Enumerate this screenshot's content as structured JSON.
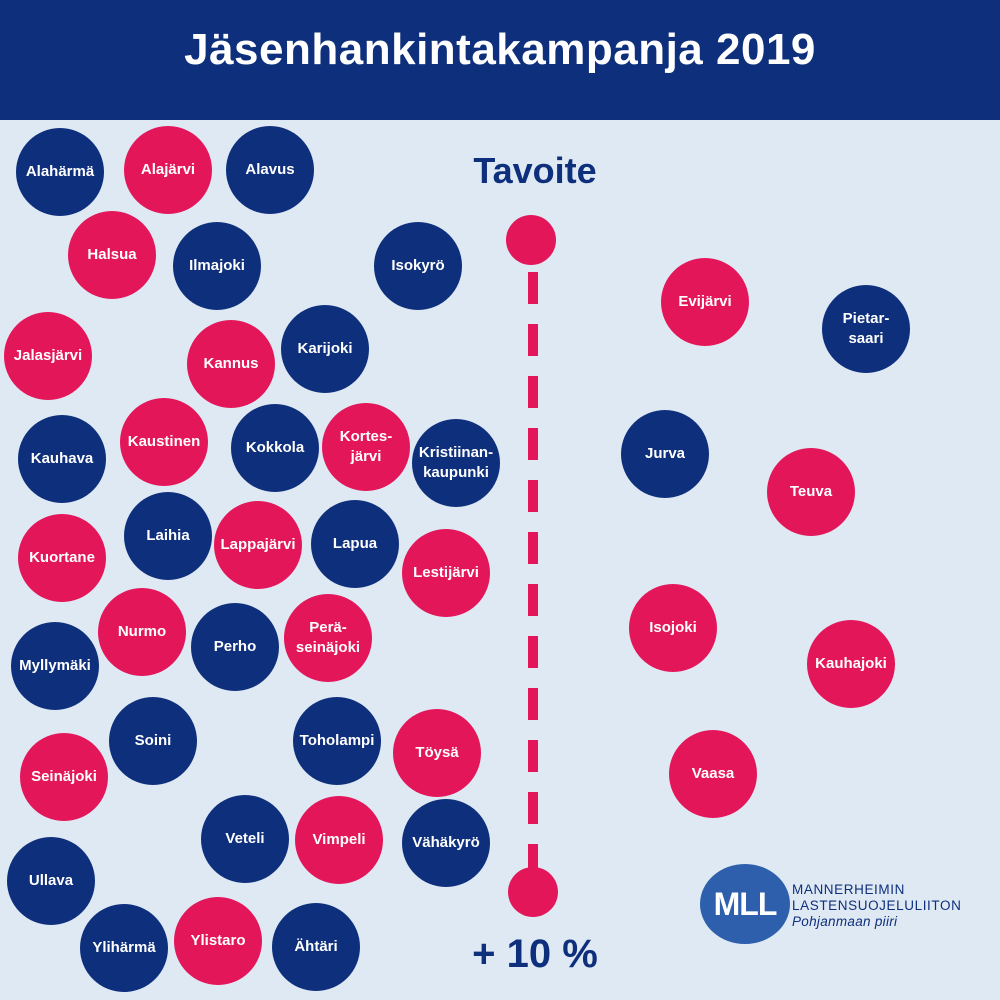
{
  "title": "Jäsenhankintakampanja 2019",
  "target_label": "Tavoite",
  "target_value": "+ 10 %",
  "colors": {
    "header": "#0e2f7c",
    "background": "#dfe9f4",
    "blue": "#0e2f7c",
    "red": "#e4165a",
    "logo": "#2d5fad"
  },
  "logo": {
    "mark": "MLL",
    "org_line1": "MANNERHEIMIN",
    "org_line2": "LASTENSUOJELULIITON",
    "org_line3": "Pohjanmaan piiri"
  },
  "below_target": [
    {
      "name": "Alahärmä",
      "color": "blue"
    },
    {
      "name": "Alajärvi",
      "color": "red"
    },
    {
      "name": "Alavus",
      "color": "blue"
    },
    {
      "name": "Halsua",
      "color": "red"
    },
    {
      "name": "Ilmajoki",
      "color": "blue"
    },
    {
      "name": "Isokyrö",
      "color": "blue"
    },
    {
      "name": "Jalasjärvi",
      "color": "red"
    },
    {
      "name": "Kannus",
      "color": "red"
    },
    {
      "name": "Karijoki",
      "color": "blue"
    },
    {
      "name": "Kauhava",
      "color": "blue"
    },
    {
      "name": "Kaustinen",
      "color": "red"
    },
    {
      "name": "Kokkola",
      "color": "blue"
    },
    {
      "name": "Kortes-\njärvi",
      "color": "red"
    },
    {
      "name": "Kristiinan-\nkaupunki",
      "color": "blue"
    },
    {
      "name": "Kuortane",
      "color": "red"
    },
    {
      "name": "Laihia",
      "color": "blue"
    },
    {
      "name": "Lappajärvi",
      "color": "red"
    },
    {
      "name": "Lapua",
      "color": "blue"
    },
    {
      "name": "Lestijärvi",
      "color": "red"
    },
    {
      "name": "Myllymäki",
      "color": "blue"
    },
    {
      "name": "Nurmo",
      "color": "red"
    },
    {
      "name": "Perho",
      "color": "blue"
    },
    {
      "name": "Perä-\nseinäjoki",
      "color": "red"
    },
    {
      "name": "Seinäjoki",
      "color": "red"
    },
    {
      "name": "Soini",
      "color": "blue"
    },
    {
      "name": "Toholampi",
      "color": "blue"
    },
    {
      "name": "Töysä",
      "color": "red"
    },
    {
      "name": "Veteli",
      "color": "blue"
    },
    {
      "name": "Vimpeli",
      "color": "red"
    },
    {
      "name": "Vähäkyrö",
      "color": "blue"
    },
    {
      "name": "Ullava",
      "color": "blue"
    },
    {
      "name": "Ylihärmä",
      "color": "blue"
    },
    {
      "name": "Ylistaro",
      "color": "red"
    },
    {
      "name": "Ähtäri",
      "color": "blue"
    }
  ],
  "above_target": [
    {
      "name": "Evijärvi",
      "color": "red"
    },
    {
      "name": "Pietar-\nsaari",
      "color": "blue"
    },
    {
      "name": "Jurva",
      "color": "blue"
    },
    {
      "name": "Teuva",
      "color": "red"
    },
    {
      "name": "Isojoki",
      "color": "red"
    },
    {
      "name": "Kauhajoki",
      "color": "red"
    },
    {
      "name": "Vaasa",
      "color": "red"
    }
  ]
}
